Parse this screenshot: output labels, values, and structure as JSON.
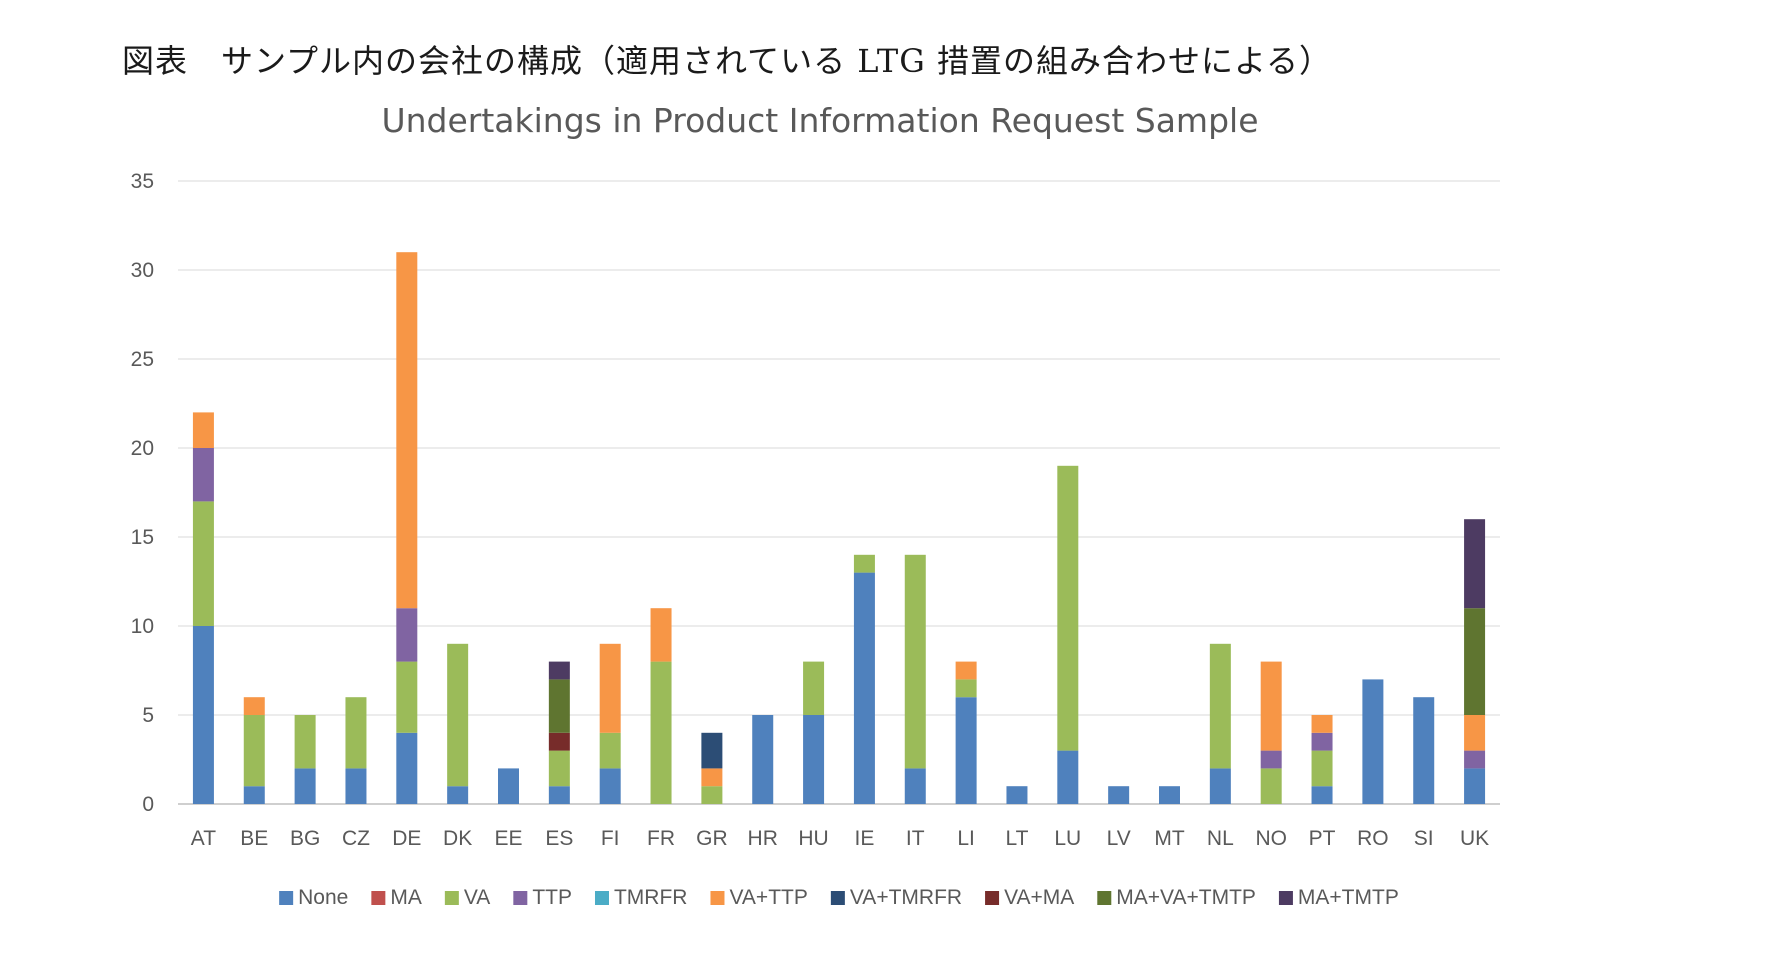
{
  "caption": "図表　サンプル内の会社の構成（適用されている LTG 措置の組み合わせによる）",
  "chart_data": {
    "type": "bar",
    "stacked": true,
    "title": "Undertakings in Product Information Request Sample",
    "xlabel": "",
    "ylabel": "",
    "ylim": [
      0,
      35
    ],
    "yticks": [
      0,
      5,
      10,
      15,
      20,
      25,
      30,
      35
    ],
    "grid": true,
    "legend_position": "bottom",
    "categories": [
      "AT",
      "BE",
      "BG",
      "CZ",
      "DE",
      "DK",
      "EE",
      "ES",
      "FI",
      "FR",
      "GR",
      "HR",
      "HU",
      "IE",
      "IT",
      "LI",
      "LT",
      "LU",
      "LV",
      "MT",
      "NL",
      "NO",
      "PT",
      "RO",
      "SI",
      "UK"
    ],
    "series": [
      {
        "name": "None",
        "color": "#4f81bd",
        "values": [
          10,
          1,
          2,
          2,
          4,
          1,
          2,
          1,
          2,
          0,
          0,
          5,
          5,
          13,
          2,
          6,
          1,
          3,
          1,
          1,
          2,
          0,
          1,
          7,
          6,
          2
        ]
      },
      {
        "name": "MA",
        "color": "#c0504d",
        "values": [
          0,
          0,
          0,
          0,
          0,
          0,
          0,
          0,
          0,
          0,
          0,
          0,
          0,
          0,
          0,
          0,
          0,
          0,
          0,
          0,
          0,
          0,
          0,
          0,
          0,
          0
        ]
      },
      {
        "name": "VA",
        "color": "#9bbb59",
        "values": [
          7,
          4,
          3,
          4,
          4,
          8,
          0,
          2,
          2,
          8,
          1,
          0,
          3,
          1,
          12,
          1,
          0,
          16,
          0,
          0,
          7,
          2,
          2,
          0,
          0,
          0
        ]
      },
      {
        "name": "TTP",
        "color": "#8064a2",
        "values": [
          3,
          0,
          0,
          0,
          3,
          0,
          0,
          0,
          0,
          0,
          0,
          0,
          0,
          0,
          0,
          0,
          0,
          0,
          0,
          0,
          0,
          1,
          1,
          0,
          0,
          1
        ]
      },
      {
        "name": "TMRFR",
        "color": "#4bacc6",
        "values": [
          0,
          0,
          0,
          0,
          0,
          0,
          0,
          0,
          0,
          0,
          0,
          0,
          0,
          0,
          0,
          0,
          0,
          0,
          0,
          0,
          0,
          0,
          0,
          0,
          0,
          0
        ]
      },
      {
        "name": "VA+TTP",
        "color": "#f79646",
        "values": [
          2,
          1,
          0,
          0,
          20,
          0,
          0,
          0,
          5,
          3,
          1,
          0,
          0,
          0,
          0,
          1,
          0,
          0,
          0,
          0,
          0,
          5,
          1,
          0,
          0,
          2
        ]
      },
      {
        "name": "VA+TMRFR",
        "color": "#2c4d75",
        "values": [
          0,
          0,
          0,
          0,
          0,
          0,
          0,
          0,
          0,
          0,
          2,
          0,
          0,
          0,
          0,
          0,
          0,
          0,
          0,
          0,
          0,
          0,
          0,
          0,
          0,
          0
        ]
      },
      {
        "name": "VA+MA",
        "color": "#772c2a",
        "values": [
          0,
          0,
          0,
          0,
          0,
          0,
          0,
          1,
          0,
          0,
          0,
          0,
          0,
          0,
          0,
          0,
          0,
          0,
          0,
          0,
          0,
          0,
          0,
          0,
          0,
          0
        ]
      },
      {
        "name": "MA+VA+TMTP",
        "color": "#5f7530",
        "values": [
          0,
          0,
          0,
          0,
          0,
          0,
          0,
          3,
          0,
          0,
          0,
          0,
          0,
          0,
          0,
          0,
          0,
          0,
          0,
          0,
          0,
          0,
          0,
          0,
          0,
          6
        ]
      },
      {
        "name": "MA+TMTP",
        "color": "#4d3b62",
        "values": [
          0,
          0,
          0,
          0,
          0,
          0,
          0,
          1,
          0,
          0,
          0,
          0,
          0,
          0,
          0,
          0,
          0,
          0,
          0,
          0,
          0,
          0,
          0,
          0,
          0,
          5
        ]
      }
    ]
  }
}
